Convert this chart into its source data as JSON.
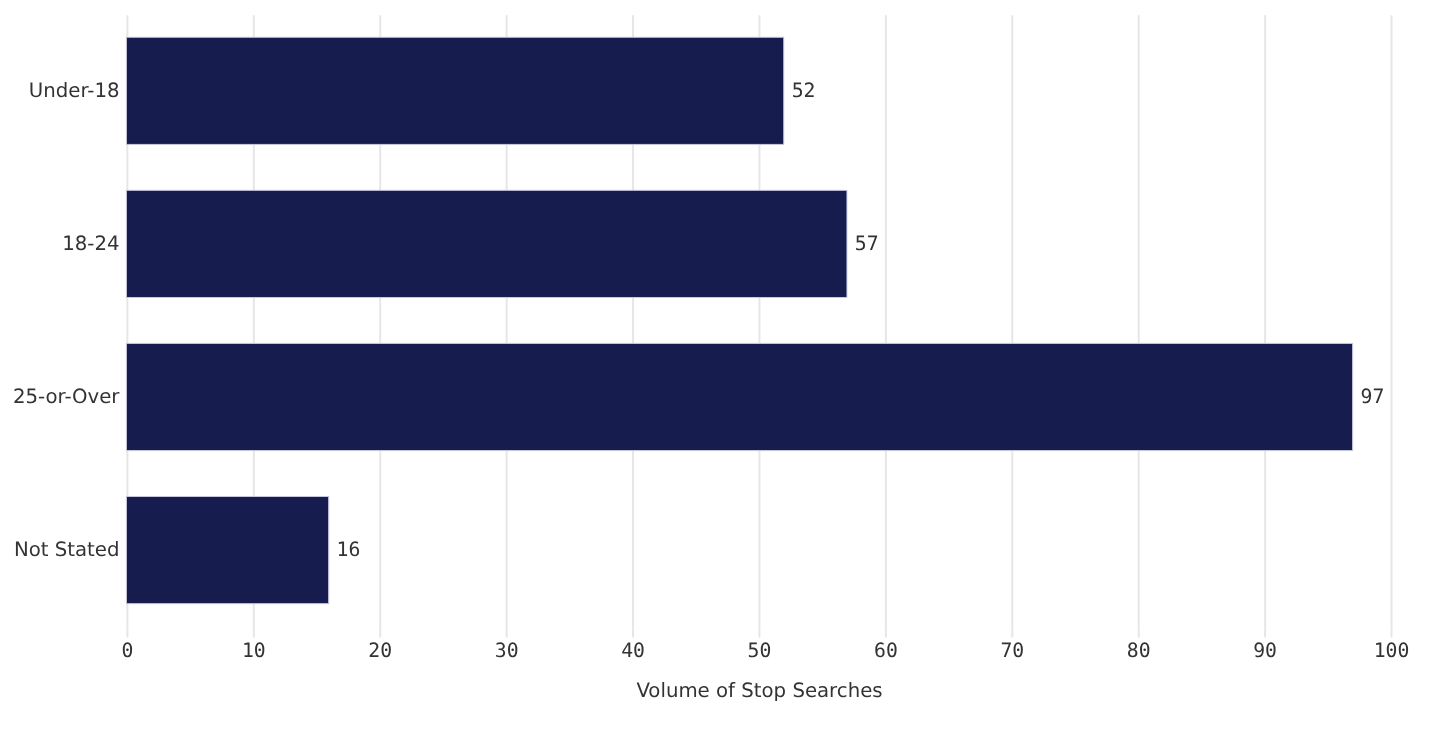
{
  "chart_data": {
    "type": "bar",
    "orientation": "horizontal",
    "categories": [
      "Under-18",
      "18-24",
      "25-or-Over",
      "Not Stated"
    ],
    "values": [
      52,
      57,
      97,
      16
    ],
    "color": "#161c4e",
    "xlabel": "Volume of Stop Searches",
    "xlim": [
      0,
      100
    ],
    "xticks": [
      0,
      10,
      20,
      30,
      40,
      50,
      60,
      70,
      80,
      90,
      100
    ],
    "grid": "x",
    "data_labels": true
  }
}
